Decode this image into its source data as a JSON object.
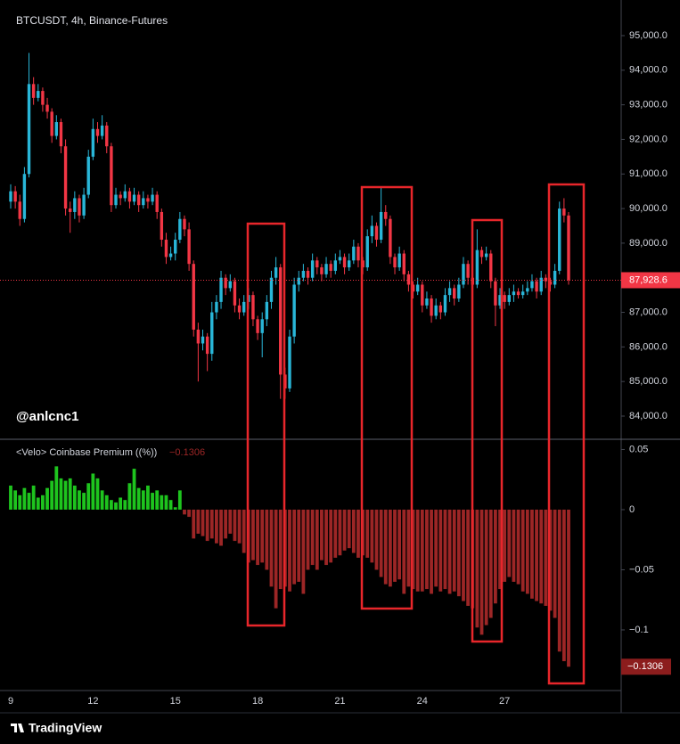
{
  "chart_data": [
    {
      "type": "candlestick",
      "title": "BTCUSDT, 4h, Binance-Futures",
      "annotation": "@anlcnc1",
      "logo": "TradingView",
      "categories": [
        "9",
        null,
        null,
        null,
        null,
        null,
        null,
        null,
        null,
        null,
        null,
        null,
        null,
        null,
        null,
        null,
        null,
        null,
        "12",
        null,
        null,
        null,
        null,
        null,
        null,
        null,
        null,
        null,
        null,
        null,
        null,
        null,
        null,
        null,
        null,
        null,
        "15",
        null,
        null,
        null,
        null,
        null,
        null,
        null,
        null,
        null,
        null,
        null,
        null,
        null,
        null,
        null,
        null,
        null,
        "18",
        null,
        null,
        null,
        null,
        null,
        null,
        null,
        null,
        null,
        null,
        null,
        null,
        null,
        null,
        null,
        null,
        null,
        "21",
        null,
        null,
        null,
        null,
        null,
        null,
        null,
        null,
        null,
        null,
        null,
        null,
        null,
        null,
        null,
        null,
        null,
        "24",
        null,
        null,
        null,
        null,
        null,
        null,
        null,
        null,
        null,
        null,
        null,
        null,
        null,
        null,
        null,
        null,
        null,
        "27",
        null,
        null,
        null,
        null,
        null,
        null,
        null,
        null,
        null,
        null,
        null,
        null,
        null,
        null
      ],
      "open": [
        90200,
        90500,
        90200,
        89700,
        91000,
        93600,
        93200,
        93400,
        93000,
        92800,
        92100,
        92500,
        91800,
        90000,
        89900,
        90300,
        89800,
        90400,
        91500,
        92300,
        92100,
        92400,
        91800,
        90100,
        90400,
        90300,
        90500,
        90200,
        90400,
        90100,
        90300,
        90200,
        90400,
        89900,
        89100,
        88600,
        88700,
        89100,
        89700,
        89400,
        88400,
        86500,
        86100,
        86300,
        85800,
        87000,
        87300,
        88000,
        87700,
        87900,
        87200,
        87000,
        87300,
        87500,
        86800,
        86400,
        86800,
        87300,
        88000,
        88300,
        85200,
        84800,
        86300,
        87800,
        88000,
        88200,
        88000,
        88500,
        88300,
        88100,
        88400,
        88200,
        88500,
        88600,
        88300,
        88500,
        88900,
        88500,
        88300,
        89200,
        89500,
        89100,
        89900,
        89700,
        88600,
        88300,
        88700,
        88100,
        87800,
        87600,
        87800,
        87200,
        87400,
        86900,
        87200,
        87000,
        87500,
        87700,
        87400,
        87800,
        88400,
        88000,
        87800,
        88800,
        88600,
        88700,
        87900,
        87200,
        87500,
        87300,
        87500,
        87600,
        87500,
        87600,
        87700,
        87900,
        87600,
        88000,
        87900,
        87800,
        88200,
        90000,
        89800
      ],
      "high": [
        90700,
        90650,
        90400,
        91200,
        94500,
        93800,
        93600,
        93500,
        93200,
        92900,
        92700,
        92600,
        92000,
        90200,
        90500,
        90400,
        90600,
        91700,
        92600,
        92500,
        92700,
        92500,
        91900,
        90600,
        90500,
        90700,
        90600,
        90600,
        90500,
        90500,
        90400,
        90600,
        90500,
        90000,
        89300,
        88900,
        89300,
        89900,
        89800,
        89600,
        88500,
        86700,
        86500,
        86400,
        87300,
        87500,
        88200,
        88100,
        88100,
        88000,
        87400,
        87500,
        87700,
        87600,
        86900,
        87000,
        87500,
        88200,
        88600,
        88400,
        85400,
        86500,
        88000,
        88200,
        88400,
        88300,
        88700,
        88600,
        88400,
        88600,
        88500,
        88700,
        88800,
        88700,
        88700,
        89100,
        89000,
        88600,
        89400,
        89800,
        89600,
        90600,
        90100,
        89800,
        88700,
        88900,
        88800,
        88200,
        87900,
        88000,
        87900,
        87600,
        87500,
        87400,
        87300,
        87700,
        87900,
        87800,
        88000,
        88600,
        88500,
        88100,
        89400,
        88900,
        88900,
        88800,
        88000,
        87700,
        87600,
        87700,
        87800,
        87700,
        87800,
        87900,
        88100,
        88000,
        88200,
        88100,
        88000,
        88400,
        90200,
        90300,
        89900
      ],
      "low": [
        90000,
        90000,
        89500,
        89600,
        90900,
        93000,
        93100,
        92800,
        92600,
        91900,
        92000,
        91600,
        89800,
        89300,
        89700,
        89600,
        89700,
        90300,
        91400,
        91900,
        92000,
        91600,
        89900,
        90000,
        90100,
        90200,
        90000,
        90100,
        89900,
        90000,
        90000,
        90100,
        89700,
        88900,
        88400,
        88500,
        88500,
        89000,
        89200,
        88200,
        86300,
        85000,
        85900,
        85300,
        85600,
        86800,
        87100,
        87500,
        87600,
        87000,
        86800,
        86900,
        87100,
        86600,
        86200,
        85700,
        86600,
        87100,
        87800,
        84500,
        84500,
        84700,
        86100,
        87600,
        87900,
        87800,
        87900,
        88100,
        87900,
        88000,
        88000,
        88100,
        88400,
        88100,
        88200,
        88400,
        88300,
        88100,
        88200,
        89000,
        88900,
        89000,
        89500,
        88400,
        88100,
        88200,
        87900,
        87600,
        87400,
        87500,
        87000,
        87100,
        86700,
        86800,
        86800,
        86900,
        87300,
        87200,
        87300,
        87700,
        87800,
        87600,
        87700,
        88400,
        88500,
        87700,
        86600,
        87100,
        87100,
        87200,
        87300,
        87400,
        87400,
        87500,
        87600,
        87400,
        87500,
        87700,
        87600,
        87700,
        88100,
        89600,
        87800
      ],
      "close": [
        90500,
        90200,
        89700,
        91000,
        93600,
        93200,
        93400,
        93000,
        92800,
        92100,
        92500,
        91800,
        90000,
        89900,
        90300,
        89800,
        90400,
        91500,
        92300,
        92100,
        92400,
        91800,
        90100,
        90400,
        90300,
        90500,
        90200,
        90400,
        90100,
        90300,
        90200,
        90400,
        89900,
        89100,
        88600,
        88700,
        89100,
        89700,
        89400,
        88400,
        86500,
        86100,
        86300,
        85800,
        87000,
        87300,
        88000,
        87700,
        87900,
        87200,
        87000,
        87300,
        87500,
        86800,
        86400,
        86800,
        87300,
        88000,
        88300,
        85200,
        84800,
        86300,
        87800,
        88000,
        88200,
        88000,
        88500,
        88300,
        88100,
        88400,
        88200,
        88500,
        88600,
        88300,
        88500,
        88900,
        88500,
        88300,
        89200,
        89500,
        89100,
        89900,
        89700,
        88600,
        88300,
        88700,
        88100,
        87800,
        87600,
        87800,
        87200,
        87400,
        86900,
        87200,
        87000,
        87500,
        87700,
        87400,
        87800,
        88400,
        88000,
        87800,
        88800,
        88600,
        88700,
        87900,
        87200,
        87500,
        87300,
        87500,
        87600,
        87500,
        87600,
        87700,
        87900,
        87600,
        88000,
        87900,
        87800,
        88200,
        90000,
        89800,
        87928.6
      ],
      "last_price_label": "87,928.6",
      "up_color": "#29b6d8",
      "down_color": "#f23645",
      "ylim": [
        83330,
        96030
      ],
      "yticks": [
        {
          "value": 95000,
          "label": "95,000.0"
        },
        {
          "value": 94000,
          "label": "94,000.0"
        },
        {
          "value": 93000,
          "label": "93,000.0"
        },
        {
          "value": 92000,
          "label": "92,000.0"
        },
        {
          "value": 91000,
          "label": "91,000.0"
        },
        {
          "value": 90000,
          "label": "90,000.0"
        },
        {
          "value": 89000,
          "label": "89,000.0"
        },
        {
          "value": 88000,
          "label": "88,000.0"
        },
        {
          "value": 87000,
          "label": "87,000.0"
        },
        {
          "value": 86000,
          "label": "86,000.0"
        },
        {
          "value": 85000,
          "label": "85,000.0"
        },
        {
          "value": 84000,
          "label": "84,000.0"
        }
      ]
    },
    {
      "type": "bar",
      "title": "<Velo> Coinbase Premium ((%))",
      "last_label": "−0.1306",
      "values": [
        0.02,
        0.016,
        0.012,
        0.018,
        0.014,
        0.02,
        0.01,
        0.012,
        0.018,
        0.024,
        0.036,
        0.026,
        0.024,
        0.026,
        0.02,
        0.016,
        0.014,
        0.022,
        0.03,
        0.026,
        0.016,
        0.012,
        0.008,
        0.006,
        0.01,
        0.008,
        0.022,
        0.034,
        0.018,
        0.016,
        0.02,
        0.014,
        0.016,
        0.012,
        0.012,
        0.008,
        0.002,
        0.016,
        -0.004,
        -0.006,
        -0.024,
        -0.02,
        -0.022,
        -0.026,
        -0.024,
        -0.028,
        -0.03,
        -0.024,
        -0.02,
        -0.026,
        -0.028,
        -0.036,
        -0.044,
        -0.042,
        -0.046,
        -0.044,
        -0.05,
        -0.064,
        -0.082,
        -0.066,
        -0.064,
        -0.068,
        -0.062,
        -0.06,
        -0.07,
        -0.05,
        -0.046,
        -0.05,
        -0.042,
        -0.046,
        -0.044,
        -0.04,
        -0.038,
        -0.034,
        -0.032,
        -0.036,
        -0.04,
        -0.038,
        -0.04,
        -0.044,
        -0.05,
        -0.056,
        -0.062,
        -0.064,
        -0.06,
        -0.058,
        -0.07,
        -0.064,
        -0.066,
        -0.068,
        -0.068,
        -0.066,
        -0.07,
        -0.064,
        -0.068,
        -0.066,
        -0.07,
        -0.068,
        -0.072,
        -0.076,
        -0.08,
        -0.082,
        -0.098,
        -0.104,
        -0.096,
        -0.09,
        -0.078,
        -0.066,
        -0.06,
        -0.056,
        -0.06,
        -0.062,
        -0.068,
        -0.07,
        -0.074,
        -0.076,
        -0.078,
        -0.08,
        -0.084,
        -0.09,
        -0.118,
        -0.126,
        -0.1306
      ],
      "positive_color": "#1ec41e",
      "negative_color": "#9c2626",
      "label_color": "#8c1d1d",
      "ylim": [
        -0.1504,
        0.0585
      ],
      "yticks": [
        0.05,
        0,
        {
          "value": -0.05,
          "label": "−0.05"
        },
        {
          "value": -0.1,
          "label": "−0.1"
        }
      ]
    }
  ]
}
